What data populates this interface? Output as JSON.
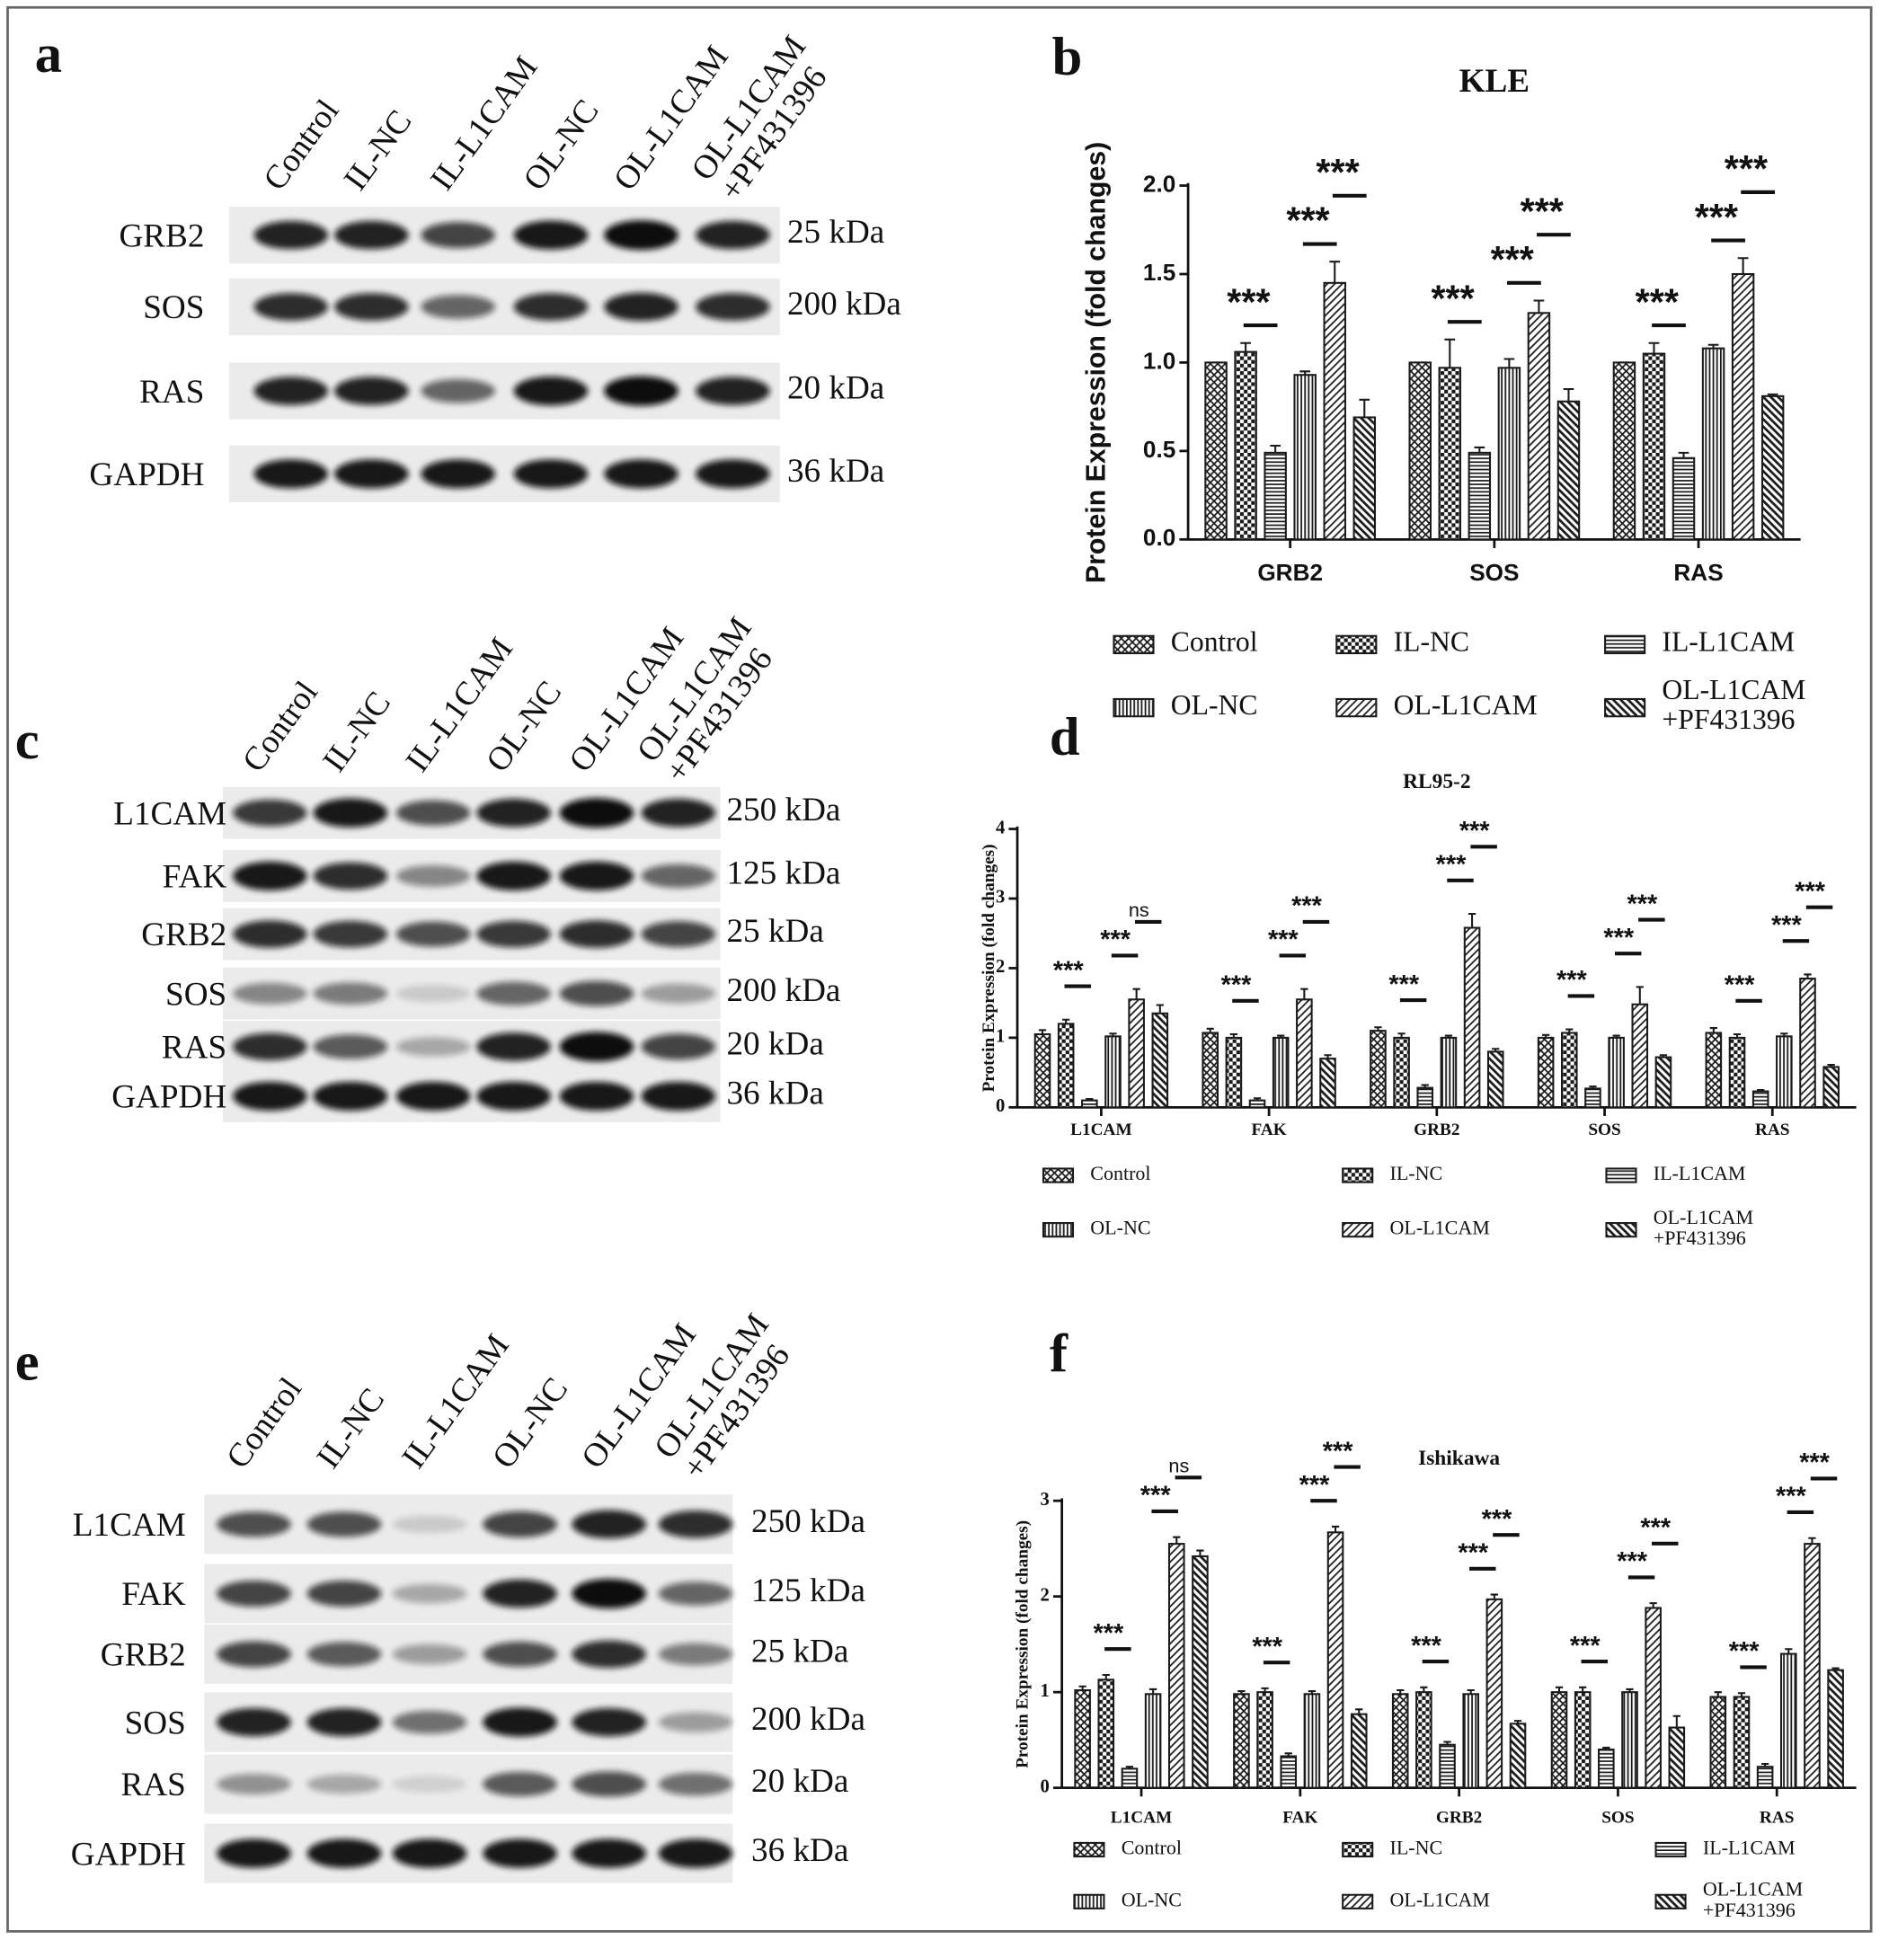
{
  "blots": [
    {
      "panel": "a",
      "lanes": [
        "Control",
        "IL-NC",
        "IL-L1CAM",
        "OL-NC",
        "OL-L1CAM",
        "OL-L1CAM\n+PF431396"
      ],
      "rows": [
        {
          "protein": "GRB2",
          "size": "25 kDa"
        },
        {
          "protein": "SOS",
          "size": "200 kDa"
        },
        {
          "protein": "RAS",
          "size": "20 kDa"
        },
        {
          "protein": "GAPDH",
          "size": "36 kDa"
        }
      ]
    },
    {
      "panel": "c",
      "lanes": [
        "Control",
        "IL-NC",
        "IL-L1CAM",
        "OL-NC",
        "OL-L1CAM",
        "OL-L1CAM\n+PF431396"
      ],
      "rows": [
        {
          "protein": "L1CAM",
          "size": "250 kDa"
        },
        {
          "protein": "FAK",
          "size": "125 kDa"
        },
        {
          "protein": "GRB2",
          "size": "25 kDa"
        },
        {
          "protein": "SOS",
          "size": "200 kDa"
        },
        {
          "protein": "RAS",
          "size": "20 kDa"
        },
        {
          "protein": "GAPDH",
          "size": "36 kDa"
        }
      ]
    },
    {
      "panel": "e",
      "lanes": [
        "Control",
        "IL-NC",
        "IL-L1CAM",
        "OL-NC",
        "OL-L1CAM",
        "OL-L1CAM\n+PF431396"
      ],
      "rows": [
        {
          "protein": "L1CAM",
          "size": "250 kDa"
        },
        {
          "protein": "FAK",
          "size": "125 kDa"
        },
        {
          "protein": "GRB2",
          "size": "25 kDa"
        },
        {
          "protein": "SOS",
          "size": "200 kDa"
        },
        {
          "protein": "RAS",
          "size": "20 kDa"
        },
        {
          "protein": "GAPDH",
          "size": "36 kDa"
        }
      ]
    }
  ],
  "chart_data": [
    {
      "type": "bar",
      "panel": "b",
      "title": "KLE",
      "ylabel": "Protein Expression (fold changes)",
      "categories": [
        "GRB2",
        "SOS",
        "RAS"
      ],
      "series": [
        {
          "name": "Control",
          "color": "#1a1a1a",
          "pattern": "crosshatch",
          "values": [
            1.0,
            1.0,
            1.0
          ],
          "errors": [
            0,
            0,
            0
          ]
        },
        {
          "name": "IL-NC",
          "color": "#1a1a1a",
          "pattern": "checker",
          "values": [
            1.06,
            0.97,
            1.05
          ],
          "errors": [
            0.05,
            0.16,
            0.06
          ]
        },
        {
          "name": "IL-L1CAM",
          "color": "#1a1a1a",
          "pattern": "hlines",
          "values": [
            0.49,
            0.49,
            0.46
          ],
          "errors": [
            0.04,
            0.03,
            0.03
          ]
        },
        {
          "name": "OL-NC",
          "color": "#1a1a1a",
          "pattern": "vlines",
          "values": [
            0.93,
            0.97,
            1.08
          ],
          "errors": [
            0.02,
            0.05,
            0.02
          ]
        },
        {
          "name": "OL-L1CAM",
          "color": "#1a1a1a",
          "pattern": "diag",
          "values": [
            1.45,
            1.28,
            1.5
          ],
          "errors": [
            0.12,
            0.07,
            0.09
          ]
        },
        {
          "name": "OL-L1CAM\n+PF431396",
          "color": "#1a1a1a",
          "pattern": "antidiag",
          "values": [
            0.69,
            0.78,
            0.81
          ],
          "errors": [
            0.1,
            0.07,
            0.01
          ]
        }
      ],
      "ylim": [
        0,
        2
      ],
      "yticks": [
        {
          "value": 0,
          "label": "0.0"
        },
        0.5,
        {
          "value": 1,
          "label": "1.0"
        },
        1.5,
        {
          "value": 2,
          "label": "2.0"
        }
      ],
      "significance": [
        [
          "***",
          "***",
          "***"
        ],
        [
          "***",
          "***",
          "***"
        ],
        [
          "***",
          "***",
          "***"
        ]
      ]
    },
    {
      "type": "bar",
      "panel": "d",
      "title": "RL95-2",
      "ylabel": "Protein Expression (fold changes)",
      "categories": [
        "L1CAM",
        "FAK",
        "GRB2",
        "SOS",
        "RAS"
      ],
      "series": [
        {
          "name": "Control",
          "color": "#1a1a1a",
          "pattern": "crosshatch",
          "values": [
            1.05,
            1.07,
            1.1,
            1.0,
            1.07
          ],
          "errors": [
            0.06,
            0.06,
            0.05,
            0.04,
            0.07
          ]
        },
        {
          "name": "IL-NC",
          "color": "#1a1a1a",
          "pattern": "checker",
          "values": [
            1.2,
            1.0,
            1.0,
            1.07,
            1.0
          ],
          "errors": [
            0.06,
            0.05,
            0.06,
            0.05,
            0.05
          ]
        },
        {
          "name": "IL-L1CAM",
          "color": "#1a1a1a",
          "pattern": "hlines",
          "values": [
            0.1,
            0.1,
            0.28,
            0.27,
            0.23
          ],
          "errors": [
            0.02,
            0.03,
            0.04,
            0.03,
            0.02
          ]
        },
        {
          "name": "OL-NC",
          "color": "#1a1a1a",
          "pattern": "vlines",
          "values": [
            1.02,
            1.0,
            1.0,
            1.0,
            1.02
          ],
          "errors": [
            0.04,
            0.03,
            0.03,
            0.03,
            0.04
          ]
        },
        {
          "name": "OL-L1CAM",
          "color": "#1a1a1a",
          "pattern": "diag",
          "values": [
            1.55,
            1.55,
            2.58,
            1.48,
            1.85
          ],
          "errors": [
            0.15,
            0.15,
            0.2,
            0.25,
            0.06
          ]
        },
        {
          "name": "OL-L1CAM\n+PF431396",
          "color": "#1a1a1a",
          "pattern": "antidiag",
          "values": [
            1.35,
            0.7,
            0.8,
            0.72,
            0.58
          ],
          "errors": [
            0.12,
            0.05,
            0.04,
            0.03,
            0.03
          ]
        }
      ],
      "ylim": [
        0,
        4
      ],
      "yticks": [
        0,
        1,
        2,
        3,
        4
      ],
      "significance": [
        [
          "***",
          "***",
          "ns"
        ],
        [
          "***",
          "***",
          "***"
        ],
        [
          "***",
          "***",
          "***"
        ],
        [
          "***",
          "***",
          "***"
        ],
        [
          "***",
          "***",
          "***"
        ]
      ]
    },
    {
      "type": "bar",
      "panel": "f",
      "title": "Ishikawa",
      "ylabel": "Protein Expression (fold changes)",
      "categories": [
        "L1CAM",
        "FAK",
        "GRB2",
        "SOS",
        "RAS"
      ],
      "series": [
        {
          "name": "Control",
          "color": "#1a1a1a",
          "pattern": "crosshatch",
          "values": [
            1.02,
            0.98,
            0.98,
            1.0,
            0.95
          ],
          "errors": [
            0.04,
            0.03,
            0.04,
            0.05,
            0.05
          ]
        },
        {
          "name": "IL-NC",
          "color": "#1a1a1a",
          "pattern": "checker",
          "values": [
            1.13,
            1.0,
            1.0,
            1.0,
            0.95
          ],
          "errors": [
            0.05,
            0.04,
            0.05,
            0.05,
            0.04
          ]
        },
        {
          "name": "IL-L1CAM",
          "color": "#1a1a1a",
          "pattern": "hlines",
          "values": [
            0.2,
            0.33,
            0.45,
            0.4,
            0.22
          ],
          "errors": [
            0.02,
            0.03,
            0.03,
            0.02,
            0.03
          ]
        },
        {
          "name": "OL-NC",
          "color": "#1a1a1a",
          "pattern": "vlines",
          "values": [
            0.98,
            0.98,
            0.98,
            1.0,
            1.4
          ],
          "errors": [
            0.05,
            0.03,
            0.04,
            0.03,
            0.05
          ]
        },
        {
          "name": "OL-L1CAM",
          "color": "#1a1a1a",
          "pattern": "diag",
          "values": [
            2.55,
            2.67,
            1.97,
            1.88,
            2.55
          ],
          "errors": [
            0.07,
            0.06,
            0.05,
            0.05,
            0.06
          ]
        },
        {
          "name": "OL-L1CAM\n+PF431396",
          "color": "#1a1a1a",
          "pattern": "antidiag",
          "values": [
            2.42,
            0.77,
            0.67,
            0.63,
            1.23
          ],
          "errors": [
            0.06,
            0.05,
            0.03,
            0.12,
            0.02
          ]
        }
      ],
      "ylim": [
        0,
        3
      ],
      "yticks": [
        0,
        1,
        2,
        3
      ],
      "significance": [
        [
          "***",
          "***",
          "ns"
        ],
        [
          "***",
          "***",
          "***"
        ],
        [
          "***",
          "***",
          "***"
        ],
        [
          "***",
          "***",
          "***"
        ],
        [
          "***",
          "***",
          "***"
        ]
      ]
    }
  ]
}
